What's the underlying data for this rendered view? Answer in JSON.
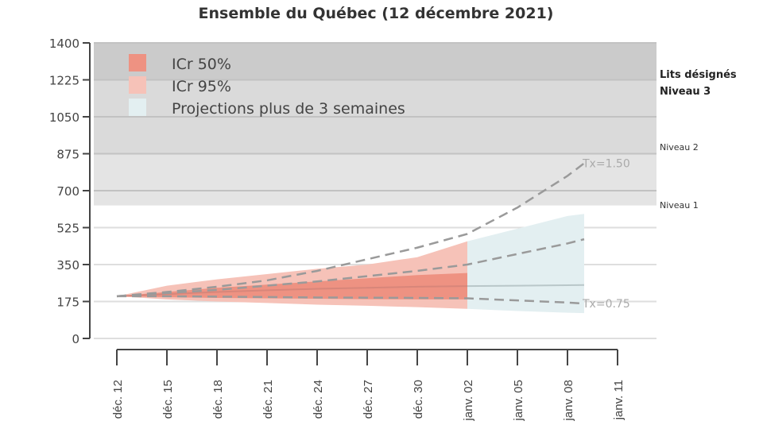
{
  "chart_data": {
    "type": "area",
    "title": "Ensemble du Québec (12 décembre 2021)",
    "ylim": [
      0,
      1400
    ],
    "yticks": [
      0,
      175,
      350,
      525,
      700,
      875,
      1050,
      1225,
      1400
    ],
    "xtick_labels": [
      "déc. 12",
      "déc. 15",
      "déc. 18",
      "déc. 21",
      "déc. 24",
      "déc. 27",
      "déc. 30",
      "janv. 02",
      "janv. 05",
      "janv. 08",
      "janv. 11"
    ],
    "xtick_days": [
      0,
      3,
      6,
      9,
      12,
      15,
      18,
      21,
      24,
      27,
      30
    ],
    "grid": true,
    "legend_position": "top-left",
    "legend": [
      "ICr 50%",
      "ICr 95%",
      "Projections plus de 3 semaines"
    ],
    "capacity_levels": [
      {
        "label": "Niveau 1",
        "from": 630,
        "to": 875,
        "color": "#e4e4e4"
      },
      {
        "label": "Niveau 2",
        "from": 875,
        "to": 1225,
        "color": "#dadada"
      },
      {
        "label": "Niveau 3",
        "from": 1225,
        "to": 1400,
        "color": "#cbcbcb"
      }
    ],
    "lits_label": "Lits désignés",
    "colors": {
      "icr50": "#ee9282",
      "icr95": "#f6c2b8",
      "projection": "#e3eff1",
      "median": "#d8867a",
      "median_proj": "#b9c7c9",
      "dashed": "#9a9a9a"
    },
    "days": [
      0,
      3,
      6,
      9,
      12,
      15,
      18,
      21
    ],
    "median": [
      200,
      210,
      220,
      228,
      235,
      240,
      245,
      248
    ],
    "icr50_low": [
      200,
      195,
      192,
      190,
      188,
      186,
      185,
      185
    ],
    "icr50_high": [
      200,
      220,
      240,
      255,
      270,
      285,
      300,
      310
    ],
    "icr95_low": [
      200,
      185,
      175,
      168,
      160,
      155,
      148,
      140
    ],
    "icr95_high": [
      200,
      250,
      280,
      305,
      330,
      350,
      385,
      460
    ],
    "proj_days": [
      21,
      24,
      27,
      28
    ],
    "proj_median": [
      248,
      250,
      252,
      253
    ],
    "proj_low": [
      140,
      130,
      122,
      120
    ],
    "proj_high": [
      460,
      520,
      580,
      590
    ],
    "scenarios": [
      {
        "label": "Tx=1.50",
        "days": [
          0,
          3,
          6,
          9,
          12,
          15,
          18,
          21,
          24,
          27,
          28
        ],
        "values": [
          200,
          220,
          245,
          275,
          320,
          375,
          430,
          495,
          620,
          770,
          830
        ]
      },
      {
        "label": "",
        "days": [
          0,
          3,
          6,
          9,
          12,
          15,
          18,
          21,
          24,
          27,
          28
        ],
        "values": [
          200,
          215,
          230,
          250,
          270,
          295,
          320,
          350,
          400,
          450,
          470
        ]
      },
      {
        "label": "Tx=0.75",
        "days": [
          0,
          3,
          6,
          9,
          12,
          15,
          18,
          21,
          24,
          27,
          28
        ],
        "values": [
          200,
          200,
          198,
          196,
          194,
          193,
          192,
          190,
          180,
          170,
          165
        ]
      }
    ]
  }
}
